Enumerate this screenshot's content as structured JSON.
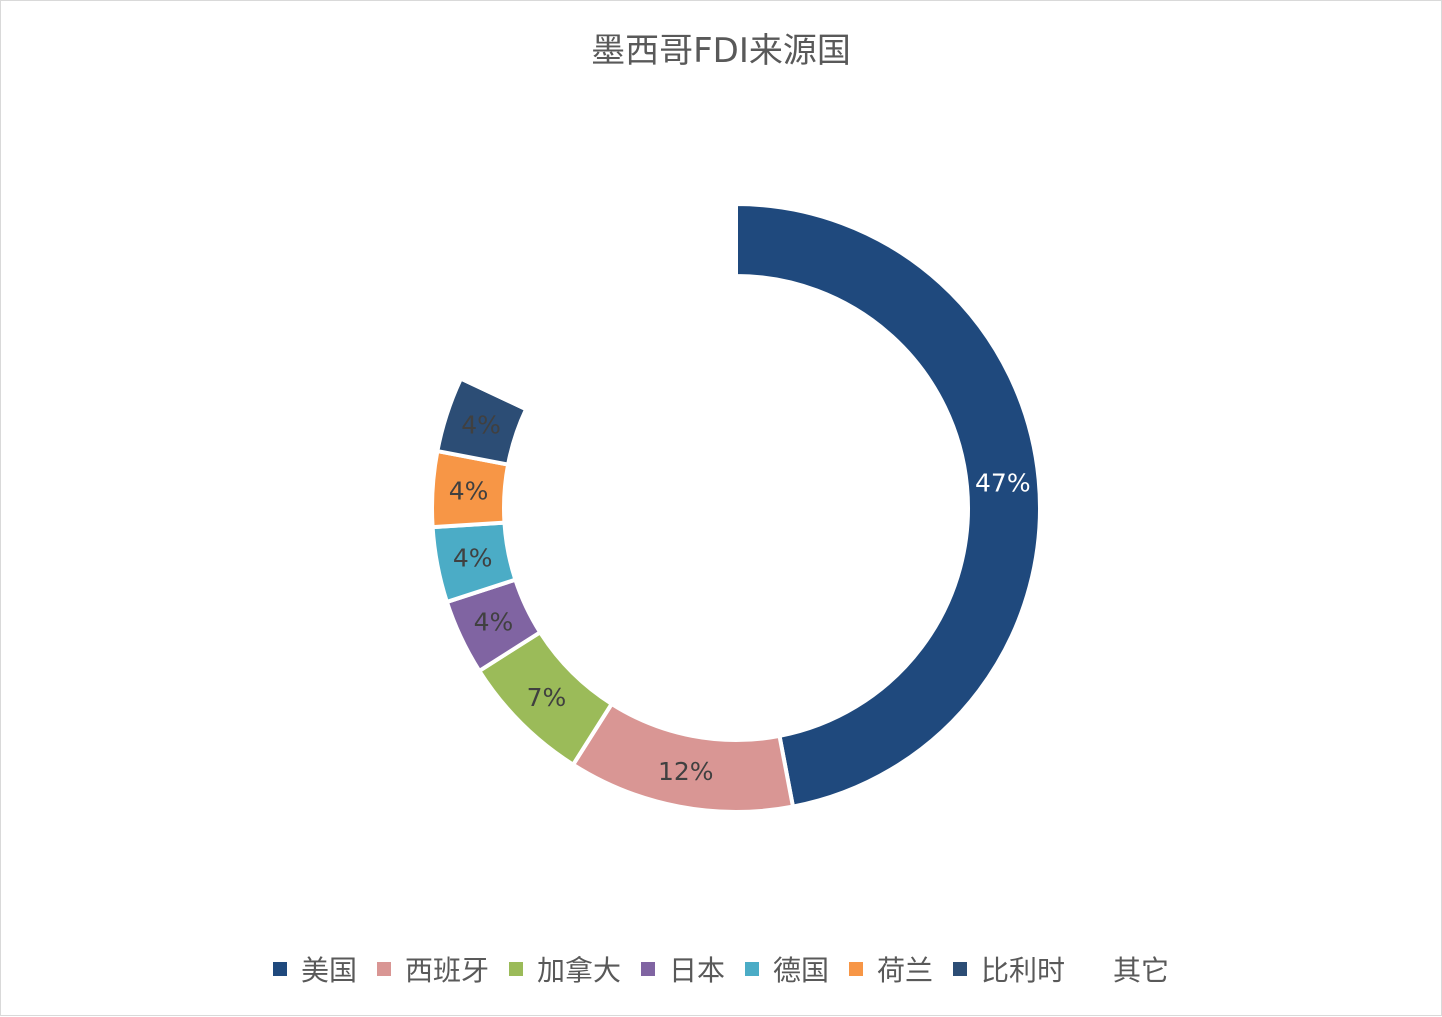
{
  "chart_data": {
    "type": "pie",
    "title": "墨西哥FDI来源国",
    "categories": [
      "美国",
      "西班牙",
      "加拿大",
      "日本",
      "德国",
      "荷兰",
      "比利时",
      "其它"
    ],
    "values": [
      47,
      12,
      7,
      4,
      4,
      4,
      4,
      18
    ],
    "labels": [
      "47%",
      "12%",
      "7%",
      "4%",
      "4%",
      "4%",
      "4%",
      ""
    ],
    "colors": [
      "#1f497d",
      "#d99694",
      "#9bbb59",
      "#8064a2",
      "#4bacc6",
      "#f79646",
      "#2c4d75",
      "#ffffff"
    ],
    "label_colors": [
      "#ffffff",
      "#404040",
      "#404040",
      "#404040",
      "#404040",
      "#404040",
      "#404040",
      "#404040"
    ],
    "legend_position": "bottom",
    "donut": true
  }
}
